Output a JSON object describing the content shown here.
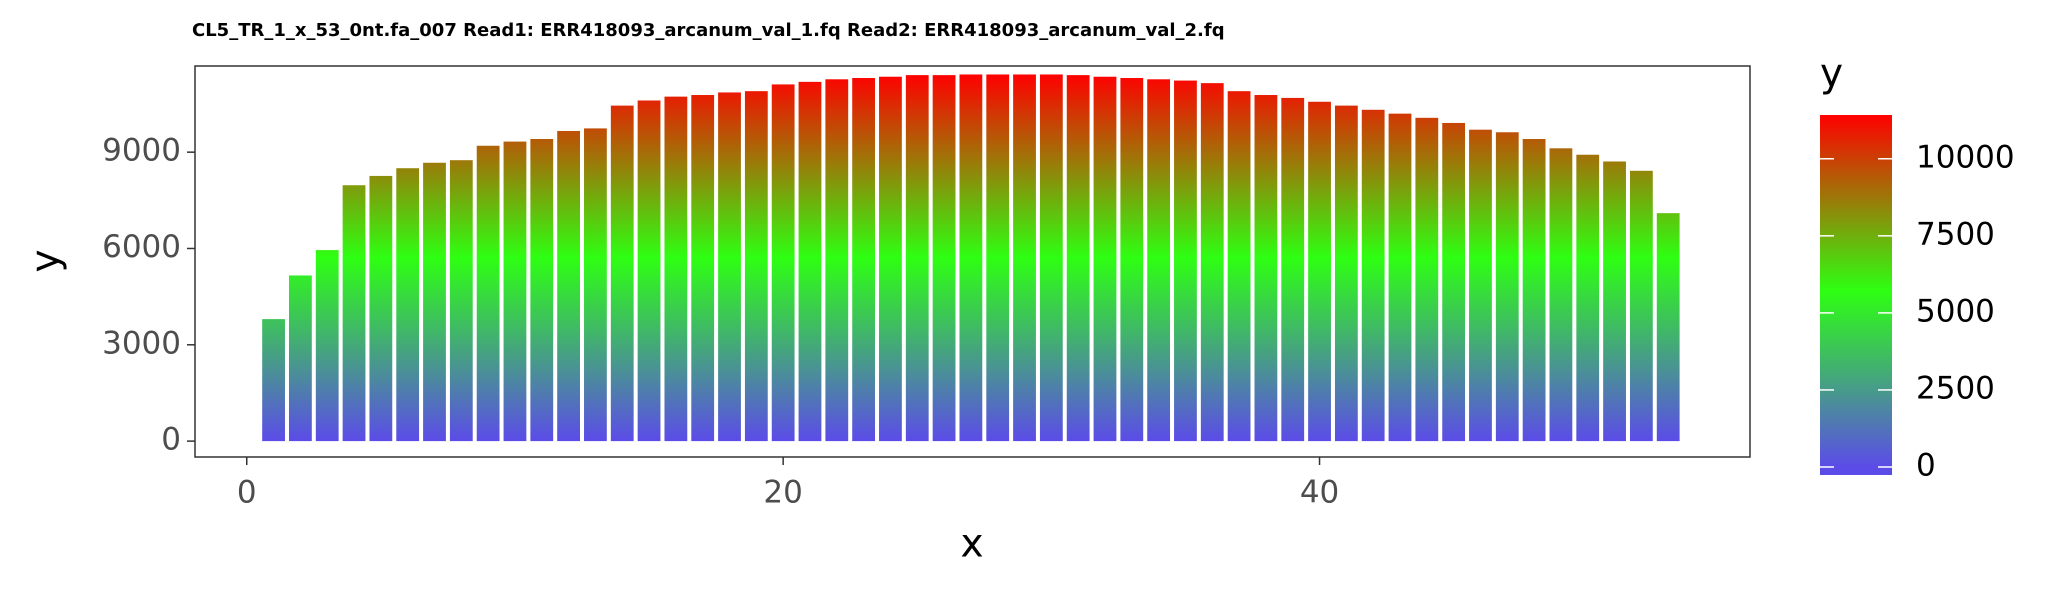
{
  "chart_data": {
    "type": "bar",
    "title": "CL5_TR_1_x_53_0nt.fa_007 Read1: ERR418093_arcanum_val_1.fq Read2: ERR418093_arcanum_val_2.fq",
    "x_label": "x",
    "y_label": "y",
    "legend_title": "y",
    "x": [
      1,
      2,
      3,
      4,
      5,
      6,
      7,
      8,
      9,
      10,
      11,
      12,
      13,
      14,
      15,
      16,
      17,
      18,
      19,
      20,
      21,
      22,
      23,
      24,
      25,
      26,
      27,
      28,
      29,
      30,
      31,
      32,
      33,
      34,
      35,
      36,
      37,
      38,
      39,
      40,
      41,
      42,
      43,
      44,
      45,
      46,
      47,
      48,
      49,
      50,
      51,
      52,
      53
    ],
    "values": [
      3800,
      5160,
      5950,
      7970,
      8260,
      8500,
      8670,
      8750,
      9200,
      9330,
      9410,
      9660,
      9740,
      10450,
      10610,
      10730,
      10780,
      10860,
      10900,
      11110,
      11190,
      11270,
      11310,
      11350,
      11400,
      11400,
      11420,
      11420,
      11420,
      11420,
      11400,
      11350,
      11310,
      11270,
      11230,
      11150,
      10900,
      10780,
      10690,
      10570,
      10450,
      10320,
      10200,
      10070,
      9910,
      9700,
      9620,
      9410,
      9120,
      8920,
      8710,
      8420,
      7100
    ],
    "xlim": [
      -1.93,
      56.05
    ],
    "xticks": [
      0,
      20,
      40
    ],
    "ylim": [
      -495,
      11684
    ],
    "yticks": [
      0,
      3000,
      6000,
      9000
    ],
    "colors": [
      "#5b4ce8",
      "#2eff12",
      "#ff0000"
    ],
    "legend_ticks": [
      0,
      2500,
      5000,
      7500,
      10000
    ]
  }
}
